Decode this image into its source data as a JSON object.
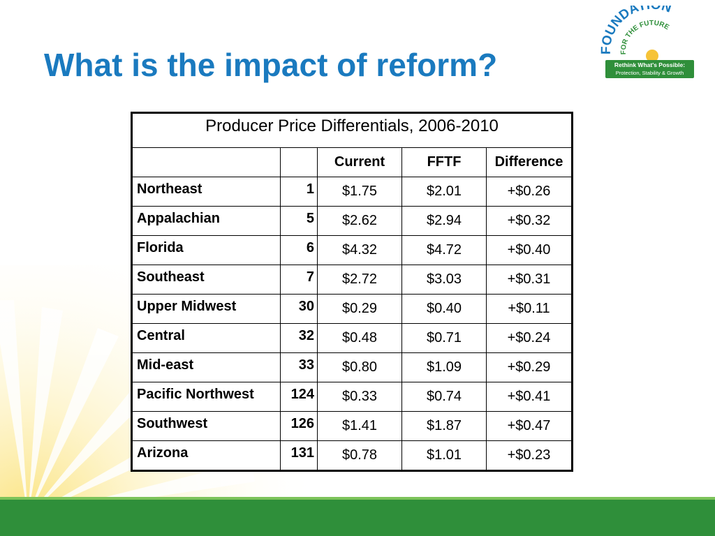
{
  "slide": {
    "title": "What is the impact of reform?"
  },
  "logo": {
    "word1": "FOUNDATION",
    "word2": "FOR THE FUTURE",
    "tagline_line1": "Rethink What's Possible:",
    "tagline_line2": "Protection, Stability & Growth"
  },
  "table": {
    "caption": "Producer Price Differentials, 2006-2010",
    "headers": [
      "",
      "",
      "Current",
      "FFTF",
      "Difference"
    ],
    "rows": [
      {
        "region": "Northeast",
        "rank": "1",
        "current": "$1.75",
        "fftf": "$2.01",
        "difference": "+$0.26"
      },
      {
        "region": "Appalachian",
        "rank": "5",
        "current": "$2.62",
        "fftf": "$2.94",
        "difference": "+$0.32"
      },
      {
        "region": "Florida",
        "rank": "6",
        "current": "$4.32",
        "fftf": "$4.72",
        "difference": "+$0.40"
      },
      {
        "region": "Southeast",
        "rank": "7",
        "current": "$2.72",
        "fftf": "$3.03",
        "difference": "+$0.31"
      },
      {
        "region": "Upper Midwest",
        "rank": "30",
        "current": "$0.29",
        "fftf": "$0.40",
        "difference": "+$0.11"
      },
      {
        "region": "Central",
        "rank": "32",
        "current": "$0.48",
        "fftf": "$0.71",
        "difference": "+$0.24"
      },
      {
        "region": "Mid-east",
        "rank": "33",
        "current": "$0.80",
        "fftf": "$1.09",
        "difference": "+$0.29"
      },
      {
        "region": "Pacific Northwest",
        "rank": "124",
        "current": "$0.33",
        "fftf": "$0.74",
        "difference": "+$0.41"
      },
      {
        "region": "Southwest",
        "rank": "126",
        "current": "$1.41",
        "fftf": "$1.87",
        "difference": "+$0.47"
      },
      {
        "region": "Arizona",
        "rank": "131",
        "current": "$0.78",
        "fftf": "$1.01",
        "difference": "+$0.23"
      }
    ]
  },
  "colors": {
    "title": "#1a7abf",
    "brand_green": "#2f8f3a",
    "brand_blue": "#1a7abf",
    "sun_yellow": "#f6d04d"
  }
}
